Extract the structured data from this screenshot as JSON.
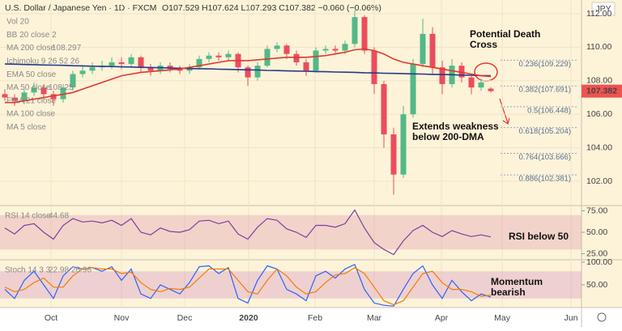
{
  "header": {
    "symbol": "U.S. Dollar / Japanese Yen · 1D · FXCM",
    "ohlc": "O107.529 H107.624 L107.293 C107.382 −0.060 (−0.06%)"
  },
  "currency": "JPY",
  "last_price": 107.382,
  "inactive_indicators": [
    "Vol 20",
    "BB 20 close 2",
    "Ichimoku 9 26 52 26",
    "EMA 50 close",
    "EMA 21 close",
    "MA 100 close",
    "MA 5 close"
  ],
  "chart_data": [
    {
      "type": "candlestick",
      "categories": [
        null,
        null,
        null,
        null,
        null,
        null,
        null,
        null,
        null,
        null,
        null,
        null,
        null,
        null,
        null,
        null,
        null,
        null,
        null,
        null,
        null,
        null,
        null,
        null,
        null,
        null,
        null,
        null,
        null,
        null,
        null,
        null,
        null,
        null,
        null,
        null,
        null,
        null,
        null,
        null,
        null,
        null,
        null,
        null,
        null,
        null,
        null,
        null,
        null,
        null,
        null
      ],
      "open": [
        107.2,
        107.0,
        106.8,
        107.3,
        107.6,
        107.2,
        106.9,
        107.6,
        108.4,
        108.6,
        108.8,
        108.9,
        109.1,
        109.0,
        109.4,
        108.8,
        108.6,
        108.9,
        108.7,
        108.6,
        108.8,
        109.3,
        109.5,
        109.4,
        109.6,
        108.8,
        108.2,
        108.9,
        109.9,
        110.1,
        109.6,
        109.1,
        108.6,
        109.8,
        109.9,
        109.8,
        110.2,
        111.8,
        109.8,
        107.8,
        104.8,
        102.4,
        106.0,
        109.0,
        110.8,
        108.8,
        107.8,
        108.9,
        108.2,
        107.6,
        107.529
      ],
      "high": [
        107.5,
        107.2,
        107.5,
        107.9,
        107.8,
        107.4,
        107.8,
        108.6,
        108.9,
        109.1,
        109.2,
        109.4,
        109.4,
        109.6,
        109.5,
        109.0,
        109.1,
        109.1,
        108.9,
        109.0,
        109.5,
        109.7,
        109.7,
        109.8,
        109.7,
        108.9,
        109.1,
        110.1,
        110.3,
        110.2,
        109.8,
        109.3,
        110.0,
        110.1,
        110.1,
        110.4,
        112.2,
        111.9,
        110.0,
        108.0,
        105.2,
        106.5,
        109.3,
        111.7,
        111.2,
        109.2,
        109.3,
        109.1,
        108.4,
        108.1,
        107.624
      ],
      "low": [
        106.8,
        106.5,
        106.6,
        107.1,
        106.9,
        106.5,
        106.7,
        107.4,
        108.2,
        108.4,
        108.6,
        108.7,
        108.7,
        108.8,
        108.5,
        108.3,
        108.4,
        108.5,
        108.4,
        108.4,
        108.7,
        109.1,
        109.2,
        109.2,
        108.5,
        107.7,
        108.0,
        108.8,
        109.7,
        109.3,
        108.9,
        108.3,
        108.5,
        109.6,
        109.6,
        109.6,
        110.0,
        109.6,
        107.2,
        104.0,
        101.2,
        102.2,
        105.8,
        108.8,
        108.4,
        107.2,
        107.6,
        107.9,
        107.2,
        107.4,
        107.293
      ],
      "close": [
        107.0,
        106.8,
        107.3,
        107.6,
        107.2,
        106.9,
        107.6,
        108.4,
        108.6,
        108.8,
        108.9,
        109.1,
        109.0,
        109.4,
        108.8,
        108.6,
        108.9,
        108.7,
        108.6,
        108.8,
        109.3,
        109.5,
        109.4,
        109.6,
        108.8,
        108.2,
        108.9,
        109.9,
        110.1,
        109.6,
        109.1,
        108.6,
        109.8,
        109.9,
        109.8,
        110.2,
        111.8,
        109.8,
        107.8,
        104.8,
        102.4,
        106.0,
        109.0,
        110.8,
        108.8,
        107.8,
        108.9,
        108.2,
        107.6,
        107.9,
        107.382
      ],
      "up_color": "#53b987",
      "down_color": "#eb4d5c",
      "series": [
        {
          "name": "MA 200 close",
          "color": "#243a8c",
          "values": [
            109.0,
            108.99,
            108.97,
            108.96,
            108.94,
            108.93,
            108.92,
            108.9,
            108.89,
            108.87,
            108.86,
            108.85,
            108.83,
            108.82,
            108.8,
            108.79,
            108.78,
            108.76,
            108.75,
            108.73,
            108.72,
            108.71,
            108.69,
            108.68,
            108.66,
            108.65,
            108.64,
            108.62,
            108.61,
            108.59,
            108.58,
            108.57,
            108.55,
            108.54,
            108.52,
            108.51,
            108.5,
            108.48,
            108.47,
            108.45,
            108.44,
            108.43,
            108.41,
            108.4,
            108.38,
            108.37,
            108.36,
            108.34,
            108.33,
            108.31,
            108.297
          ]
        },
        {
          "name": "MA 50 close",
          "color": "#e0392f",
          "values": [
            106.7,
            106.7,
            106.8,
            106.9,
            107.0,
            107.1,
            107.2,
            107.3,
            107.5,
            107.7,
            107.9,
            108.1,
            108.3,
            108.4,
            108.5,
            108.55,
            108.6,
            108.65,
            108.7,
            108.8,
            108.9,
            109.0,
            109.1,
            109.2,
            109.2,
            109.2,
            109.25,
            109.3,
            109.35,
            109.4,
            109.4,
            109.4,
            109.45,
            109.5,
            109.6,
            109.7,
            109.85,
            109.9,
            109.8,
            109.6,
            109.3,
            109.1,
            109.0,
            108.9,
            108.8,
            108.7,
            108.6,
            108.5,
            108.4,
            108.3,
            108.25
          ]
        }
      ],
      "xlim": [
        -0.5,
        59.33
      ],
      "xticks": [
        {
          "value": 4.75,
          "label": "Oct"
        },
        {
          "value": 12,
          "label": "Nov"
        },
        {
          "value": 18.5,
          "label": "Dec"
        },
        {
          "value": 25.08,
          "label": "2020"
        },
        {
          "value": 31.92,
          "label": "Feb"
        },
        {
          "value": 38,
          "label": "Mar"
        },
        {
          "value": 44.92,
          "label": "Apr"
        },
        {
          "value": 51.17,
          "label": "May"
        },
        {
          "value": 58.25,
          "label": "Jun"
        }
      ],
      "ylim": [
        100.6,
        112.82
      ],
      "yticks": [
        {
          "value": 102,
          "label": "102.00"
        },
        {
          "value": 104,
          "label": "104.00"
        },
        {
          "value": 106,
          "label": "106.00"
        },
        {
          "value": 108,
          "label": "108.00"
        },
        {
          "value": 110,
          "label": "110.00"
        },
        {
          "value": 112,
          "label": "112.00"
        }
      ],
      "grid": true,
      "fib_levels": [
        {
          "value": 109.229,
          "label": "0.236(109.229)"
        },
        {
          "value": 107.691,
          "label": "0.382(107.691)"
        },
        {
          "value": 106.448,
          "label": "0.5(106.448)"
        },
        {
          "value": 105.204,
          "label": "0.618(105.204)"
        },
        {
          "value": 103.666,
          "label": "0.764(103.666)"
        },
        {
          "value": 102.381,
          "label": "0.886(102.381)"
        }
      ],
      "annotations": [
        [
          "Potential Death",
          "Cross"
        ],
        [
          "Extends weakness",
          "below 200-DMA"
        ]
      ]
    },
    {
      "type": "line",
      "title": "RSI 14 close",
      "series": [
        {
          "color": "#7b3fa0",
          "values": [
            55,
            48,
            58,
            60,
            50,
            42,
            58,
            66,
            62,
            63,
            61,
            64,
            58,
            66,
            50,
            47,
            55,
            51,
            50,
            53,
            63,
            64,
            60,
            63,
            48,
            42,
            56,
            66,
            64,
            54,
            50,
            44,
            58,
            58,
            56,
            60,
            76,
            55,
            38,
            30,
            24,
            40,
            52,
            58,
            50,
            45,
            52,
            48,
            45,
            47,
            44.68
          ]
        }
      ],
      "band": [
        30,
        70
      ],
      "xlim": [
        -0.5,
        59.33
      ],
      "ylim": [
        18.9,
        80.2
      ],
      "yticks": [
        {
          "value": 25,
          "label": "25.00"
        },
        {
          "value": 50,
          "label": "50.00"
        },
        {
          "value": 75,
          "label": "75.00"
        }
      ],
      "annotations": [
        [
          "RSI below 50"
        ]
      ]
    },
    {
      "type": "line",
      "title": "Stoch 14 3 3",
      "series": [
        {
          "color": "#2962ff",
          "values": [
            40,
            20,
            60,
            80,
            50,
            20,
            70,
            90,
            85,
            88,
            80,
            90,
            60,
            85,
            30,
            20,
            50,
            40,
            30,
            55,
            90,
            92,
            75,
            88,
            20,
            10,
            60,
            92,
            85,
            40,
            30,
            15,
            70,
            80,
            65,
            85,
            95,
            40,
            10,
            5,
            3,
            40,
            75,
            92,
            50,
            20,
            60,
            35,
            15,
            30,
            22.98
          ]
        },
        {
          "color": "#f57c00",
          "values": [
            45,
            35,
            40,
            55,
            65,
            45,
            45,
            70,
            85,
            88,
            85,
            85,
            75,
            78,
            55,
            40,
            35,
            42,
            40,
            45,
            65,
            85,
            85,
            85,
            60,
            35,
            30,
            60,
            85,
            70,
            45,
            30,
            35,
            55,
            72,
            75,
            88,
            75,
            45,
            15,
            6,
            15,
            45,
            75,
            80,
            55,
            40,
            40,
            35,
            25,
            26.96
          ]
        }
      ],
      "band": [
        20,
        80
      ],
      "xlim": [
        -0.5,
        59.33
      ],
      "ylim": [
        0,
        103.6
      ],
      "yticks": [
        {
          "value": 50,
          "label": "50.00"
        },
        {
          "value": 100,
          "label": "100.00"
        }
      ],
      "annotations": [
        [
          "Momentum",
          "bearish"
        ]
      ]
    }
  ]
}
